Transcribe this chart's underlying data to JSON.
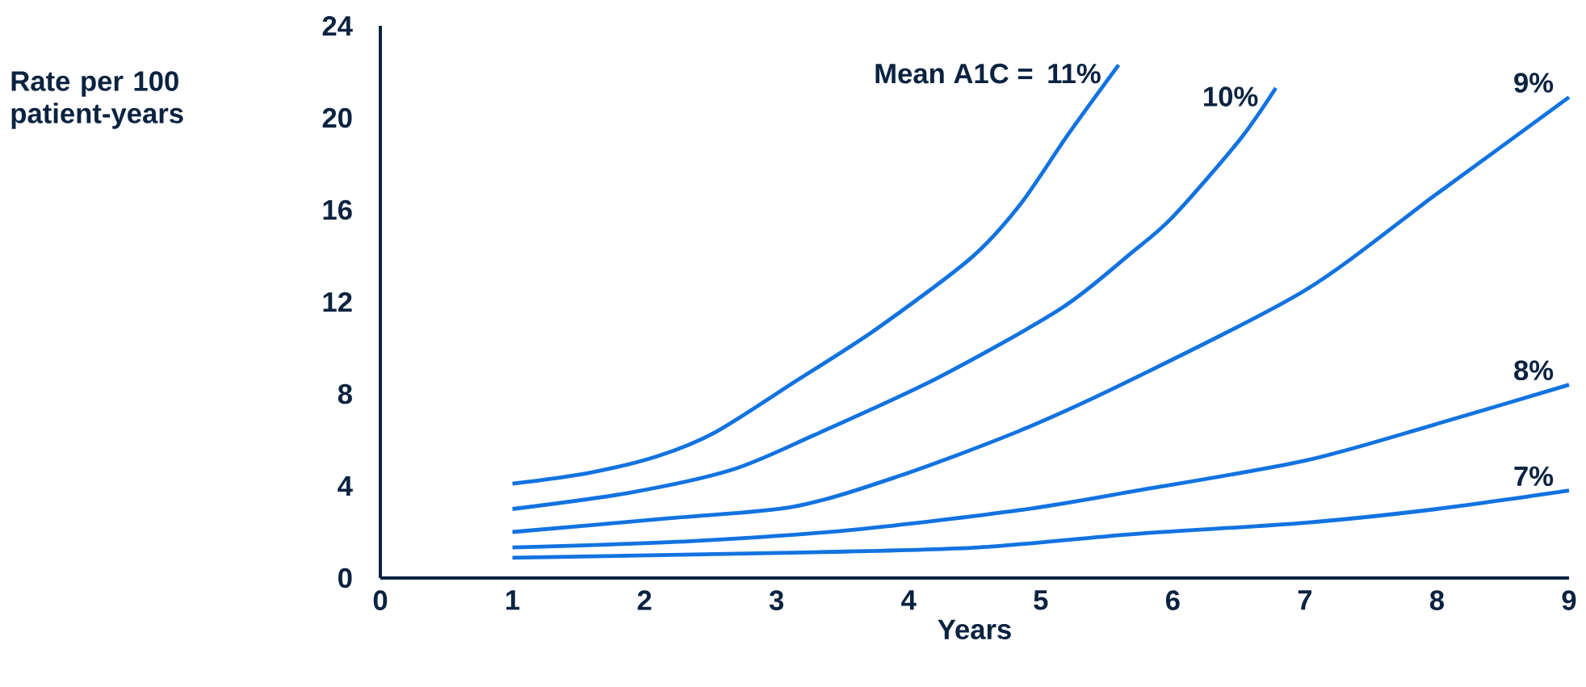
{
  "chart_data": {
    "type": "line",
    "xlabel": "Years",
    "ylabel": "Rate per 100 patient-years",
    "annotations": [
      "Mean A1C ="
    ],
    "xlim": [
      0,
      9
    ],
    "ylim": [
      0,
      24
    ],
    "xticks": [
      0,
      1,
      2,
      3,
      4,
      5,
      6,
      7,
      8,
      9
    ],
    "yticks": [
      0,
      4,
      8,
      12,
      16,
      20,
      24
    ],
    "marker": "none",
    "line_style": "solid",
    "series": [
      {
        "name": "11%",
        "color": "#1273e0",
        "x": [
          1.0,
          1.57,
          2.1,
          2.54,
          3.13,
          3.75,
          4.47,
          4.84,
          5.21,
          5.59
        ],
        "values": [
          4.1,
          4.56,
          5.3,
          6.35,
          8.5,
          10.8,
          13.9,
          16.2,
          19.3,
          22.3
        ]
      },
      {
        "name": "10%",
        "color": "#1273e0",
        "x": [
          1.0,
          1.88,
          2.66,
          3.28,
          4.22,
          5.15,
          5.68,
          6.0,
          6.5,
          6.78
        ],
        "values": [
          3.0,
          3.7,
          4.7,
          6.2,
          8.7,
          11.7,
          14.1,
          15.7,
          19.0,
          21.3
        ]
      },
      {
        "name": "9%",
        "color": "#1273e0",
        "x": [
          1.0,
          2.19,
          3.13,
          3.91,
          4.84,
          5.68,
          7.0,
          8.0,
          9.0
        ],
        "values": [
          2.0,
          2.6,
          3.1,
          4.4,
          6.4,
          8.6,
          12.5,
          16.7,
          20.9
        ]
      },
      {
        "name": "8%",
        "color": "#1273e0",
        "x": [
          1.0,
          2.35,
          3.59,
          4.84,
          5.68,
          7.0,
          8.0,
          9.0
        ],
        "values": [
          1.33,
          1.6,
          2.1,
          2.95,
          3.75,
          5.1,
          6.7,
          8.4
        ]
      },
      {
        "name": "7%",
        "color": "#1273e0",
        "x": [
          1.0,
          3.28,
          4.53,
          5.68,
          7.0,
          8.0,
          9.0
        ],
        "values": [
          0.88,
          1.12,
          1.33,
          1.9,
          2.4,
          3.0,
          3.8
        ]
      }
    ]
  }
}
